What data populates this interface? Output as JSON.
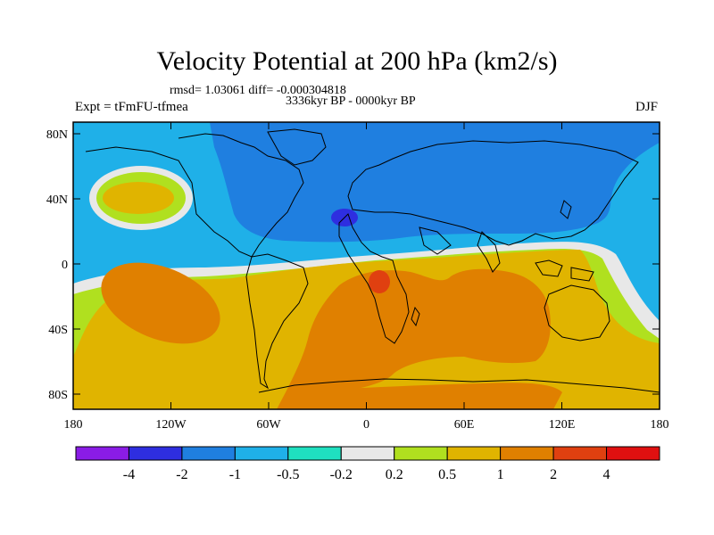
{
  "title": "Velocity Potential at 200 hPa (km2/s)",
  "rmsd_line": "rmsd= 1.03061 diff= -0.000304818",
  "period": "3336kyr BP - 0000kyr BP",
  "expt": "Expt = tFmFU-tfmea",
  "season": "DJF",
  "lat_ticks": [
    "80N",
    "40N",
    "0",
    "40S",
    "80S"
  ],
  "lon_ticks": [
    "180",
    "120W",
    "60W",
    "0",
    "60E",
    "120E",
    "180"
  ],
  "colorbar": {
    "labels": [
      "-4",
      "-2",
      "-1",
      "-0.5",
      "-0.2",
      "0.2",
      "0.5",
      "1",
      "2",
      "4"
    ],
    "colors": [
      "#8a1ce6",
      "#2e2ee0",
      "#1f7fe0",
      "#1fb0e8",
      "#1fe0c0",
      "#e8e8e8",
      "#b0e01f",
      "#e0b400",
      "#e08000",
      "#e04010",
      "#e01010"
    ]
  },
  "colors": {
    "ocean_base": "#1fb0e8",
    "neg_strong": "#1f7fe0",
    "neg_extreme": "#2e2ee0",
    "near_zero": "#e8e8e8",
    "pos_weak": "#b0e01f",
    "pos_mid": "#e0b400",
    "pos_high": "#e08000",
    "pos_peak": "#e04010",
    "neg_light": "#1fe0c0"
  }
}
